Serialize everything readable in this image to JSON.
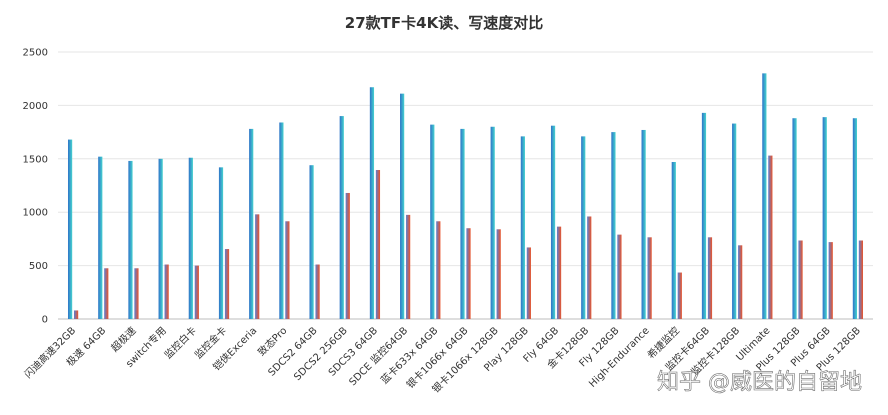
{
  "chart_data": {
    "type": "bar",
    "title": "27款TF卡4K读、写速度对比",
    "xlabel": "",
    "ylabel": "",
    "ylim": [
      0,
      2500
    ],
    "yticks": [
      0,
      500,
      1000,
      1500,
      2000,
      2500
    ],
    "grid": true,
    "legend": "none",
    "categories": [
      "闪迪高速32GB",
      "极速 64GB",
      "超极速",
      "switch专用",
      "监控白卡",
      "监控金卡",
      "铠侠Exceria",
      "致态Pro",
      "SDCS2 64GB",
      "SDCS2 256GB",
      "SDCS3 64GB",
      "SDCE 监控64GB",
      "蓝卡633x 64GB",
      "银卡1066x 64GB",
      "银卡1066x 128GB",
      "Play 128GB",
      "Fly 64GB",
      "金卡128GB",
      "Fly 128GB",
      "High-Endurance",
      "希捷监控",
      "监控卡64GB",
      "监控卡128GB",
      "Ultimate",
      "Plus 128GB",
      "Plus 64GB",
      "Plus 128GB"
    ],
    "series": [
      {
        "name": "",
        "color": "#3dbfca",
        "values": [
          1680,
          1520,
          1480,
          1500,
          1510,
          1420,
          1780,
          1840,
          1440,
          1900,
          2170,
          2110,
          1820,
          1780,
          1800,
          1710,
          1810,
          1710,
          1750,
          1770,
          1470,
          1930,
          1830,
          2300,
          1880,
          1890,
          1880
        ]
      },
      {
        "name": "",
        "color": "#e25a3a",
        "values": [
          80,
          475,
          475,
          510,
          500,
          655,
          980,
          915,
          510,
          1180,
          1395,
          975,
          915,
          850,
          840,
          670,
          865,
          960,
          790,
          765,
          435,
          765,
          690,
          1530,
          735,
          720,
          735
        ]
      }
    ]
  },
  "watermark": "知乎 @威医的自留地"
}
